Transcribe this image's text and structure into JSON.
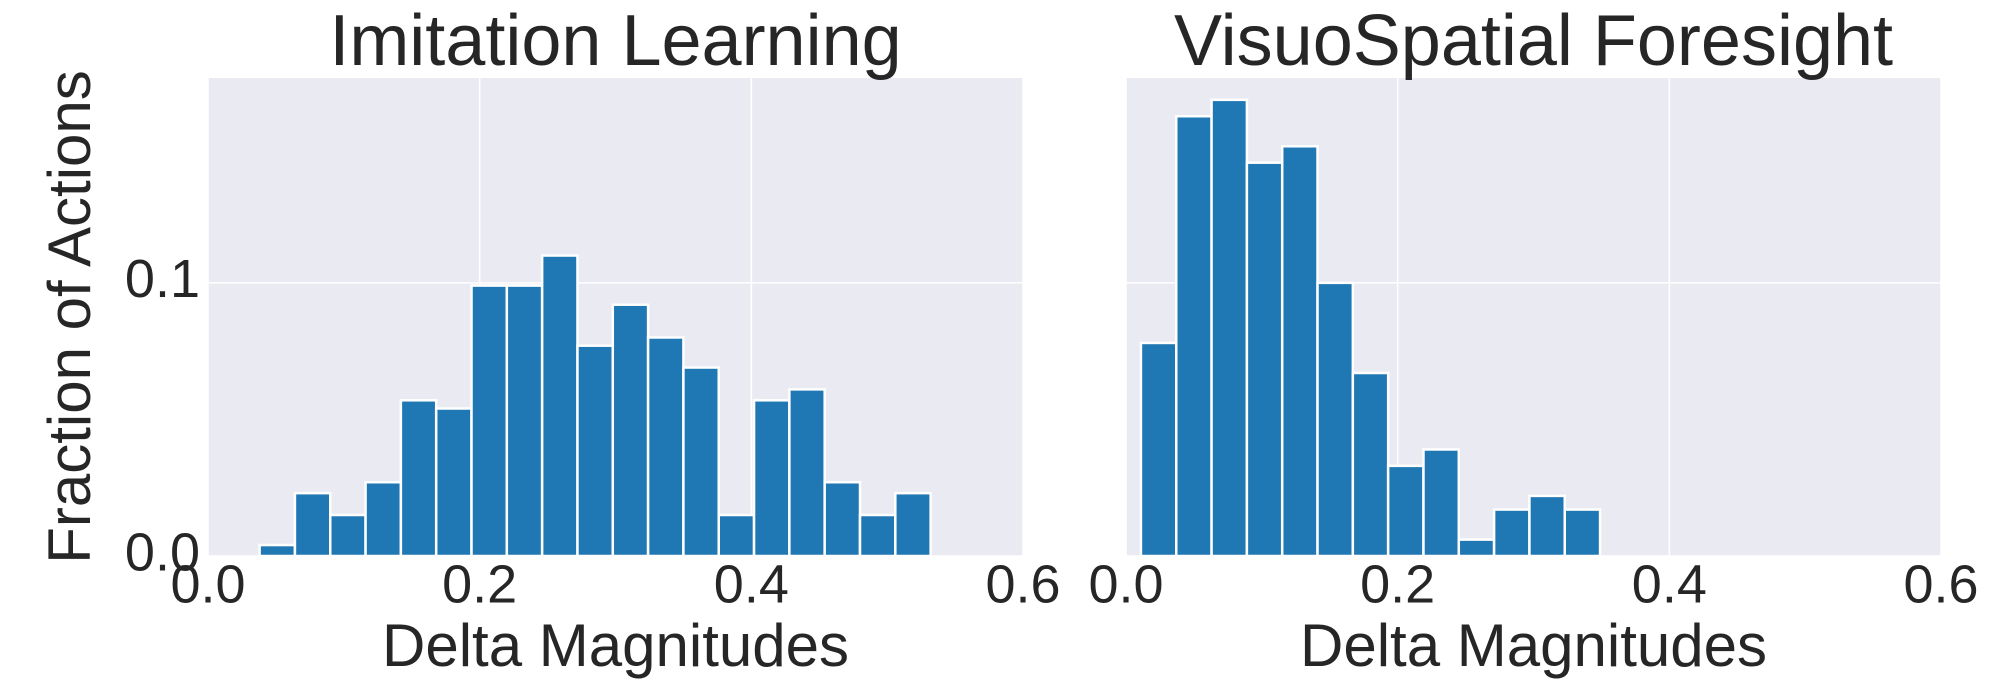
{
  "chart_data": [
    {
      "type": "histogram",
      "title": "Imitation Learning",
      "xlabel": "Delta Magnitudes",
      "ylabel": "Fraction of Actions",
      "bins": [
        0.038,
        0.064,
        0.09,
        0.116,
        0.142,
        0.168,
        0.194,
        0.22,
        0.246,
        0.272,
        0.298,
        0.324,
        0.35,
        0.376,
        0.402,
        0.428,
        0.454,
        0.48,
        0.506,
        0.532
      ],
      "values": [
        0.004,
        0.023,
        0.015,
        0.027,
        0.057,
        0.054,
        0.099,
        0.099,
        0.11,
        0.077,
        0.092,
        0.08,
        0.069,
        0.015,
        0.057,
        0.061,
        0.027,
        0.015,
        0.023
      ],
      "color": "#1f77b4",
      "xlim": [
        0,
        0.6
      ],
      "ylim": [
        0,
        0.175
      ],
      "xticks": [
        {
          "value": 0,
          "label": "0.0"
        },
        0.2,
        0.4,
        0.6
      ],
      "yticks": [
        {
          "value": 0,
          "label": "0.0"
        },
        0.1
      ],
      "grid": true
    },
    {
      "type": "histogram",
      "title": "VisuoSpatial Foresight",
      "xlabel": "Delta Magnitudes",
      "bins": [
        0.011,
        0.037,
        0.063,
        0.089,
        0.115,
        0.141,
        0.167,
        0.193,
        0.219,
        0.245,
        0.271,
        0.297,
        0.323,
        0.349
      ],
      "values": [
        0.078,
        0.161,
        0.167,
        0.144,
        0.15,
        0.1,
        0.067,
        0.033,
        0.039,
        0.006,
        0.017,
        0.022,
        0.017
      ],
      "color": "#1f77b4",
      "xlim": [
        0,
        0.6
      ],
      "ylim": [
        0,
        0.175
      ],
      "xticks": [
        {
          "value": 0,
          "label": "0.0"
        },
        0.2,
        0.4,
        0.6
      ],
      "grid": true,
      "sharey": true
    }
  ]
}
